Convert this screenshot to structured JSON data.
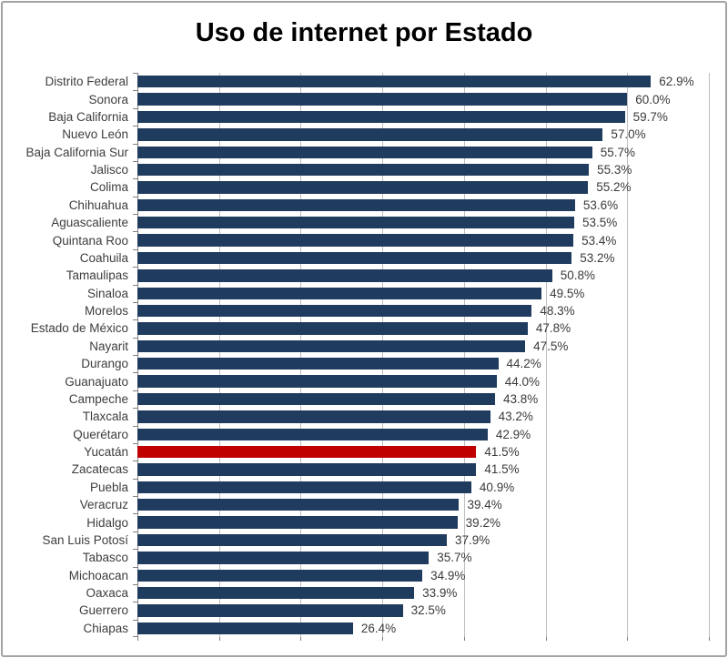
{
  "window": {
    "background": "#FFFFFF",
    "border_color": "#A3A3A3"
  },
  "chart_data": {
    "type": "bar",
    "orientation": "horizontal",
    "title": "Uso de internet por Estado",
    "xlabel": "",
    "ylabel": "",
    "xlim": [
      0,
      70
    ],
    "gridline_step": 10,
    "gridlines": [
      0,
      10,
      20,
      30,
      40,
      50,
      60,
      70
    ],
    "x_axis_tick_labels_visible": false,
    "legend": "none",
    "categories": [
      "Distrito Federal",
      "Sonora",
      "Baja California",
      "Nuevo León",
      "Baja California Sur",
      "Jalisco",
      "Colima",
      "Chihuahua",
      "Aguascaliente",
      "Quintana Roo",
      "Coahuila",
      "Tamaulipas",
      "Sinaloa",
      "Morelos",
      "Estado de México",
      "Nayarit",
      "Durango",
      "Guanajuato",
      "Campeche",
      "Tlaxcala",
      "Querétaro",
      "Yucatán",
      "Zacatecas",
      "Puebla",
      "Veracruz",
      "Hidalgo",
      "San Luis Potosí",
      "Tabasco",
      "Michoacan",
      "Oaxaca",
      "Guerrero",
      "Chiapas"
    ],
    "values": [
      62.9,
      60.0,
      59.7,
      57.0,
      55.7,
      55.3,
      55.2,
      53.6,
      53.5,
      53.4,
      53.2,
      50.8,
      49.5,
      48.3,
      47.8,
      47.5,
      44.2,
      44.0,
      43.8,
      43.2,
      42.9,
      41.5,
      41.5,
      40.9,
      39.4,
      39.2,
      37.9,
      35.7,
      34.9,
      33.9,
      32.5,
      26.4
    ],
    "value_labels": [
      "62.9%",
      "60.0%",
      "59.7%",
      "57.0%",
      "55.7%",
      "55.3%",
      "55.2%",
      "53.6%",
      "53.5%",
      "53.4%",
      "53.2%",
      "50.8%",
      "49.5%",
      "48.3%",
      "47.8%",
      "47.5%",
      "44.2%",
      "44.0%",
      "43.8%",
      "43.2%",
      "42.9%",
      "41.5%",
      "41.5%",
      "40.9%",
      "39.4%",
      "39.2%",
      "37.9%",
      "35.7%",
      "34.9%",
      "33.9%",
      "32.5%",
      "26.4%"
    ],
    "highlight": {
      "category": "Yucatán",
      "index": 21,
      "color": "#C00000"
    },
    "colors": {
      "bar": "#1F3B5E",
      "grid": "#BFBFBF",
      "axis": "#808080",
      "category_text": "#3D3D3D",
      "value_text": "#3A3A3A",
      "title_text": "#000000"
    }
  }
}
